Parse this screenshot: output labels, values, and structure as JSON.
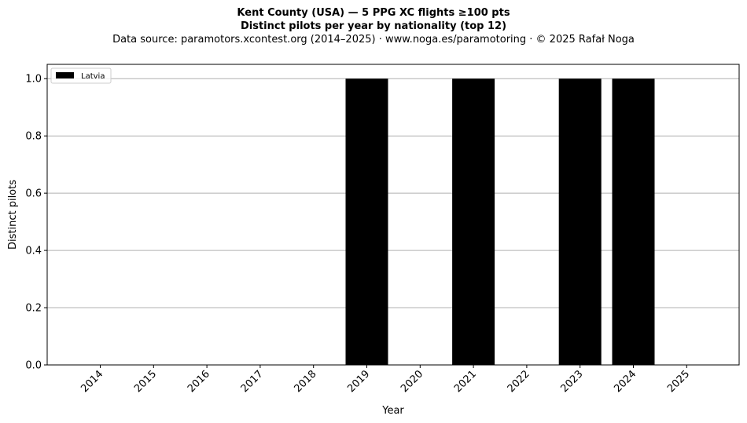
{
  "header": {
    "title_line1": "Kent County (USA)  —  5 PPG XC flights ≥100 pts",
    "title_line2": "Distinct pilots per year by nationality (top 12)",
    "subtitle": "Data source: paramotors.xcontest.org (2014–2025)  ·  www.noga.es/paramotoring  ·  © 2025 Rafał Noga"
  },
  "chart_data": {
    "type": "bar",
    "categories": [
      "2014",
      "2015",
      "2016",
      "2017",
      "2018",
      "2019",
      "2020",
      "2021",
      "2022",
      "2023",
      "2024",
      "2025"
    ],
    "series": [
      {
        "name": "Latvia",
        "color": "#000000",
        "values": [
          0,
          0,
          0,
          0,
          0,
          1,
          0,
          1,
          0,
          1,
          1,
          0
        ]
      }
    ],
    "xlabel": "Year",
    "ylabel": "Distinct pilots",
    "ylim": [
      0,
      1.05
    ],
    "yticks": [
      "0.0",
      "0.2",
      "0.4",
      "0.6",
      "0.8",
      "1.0"
    ],
    "ytick_values": [
      0,
      0.2,
      0.4,
      0.6,
      0.8,
      1.0
    ],
    "grid": "horizontal",
    "legend_position": "top-left"
  }
}
